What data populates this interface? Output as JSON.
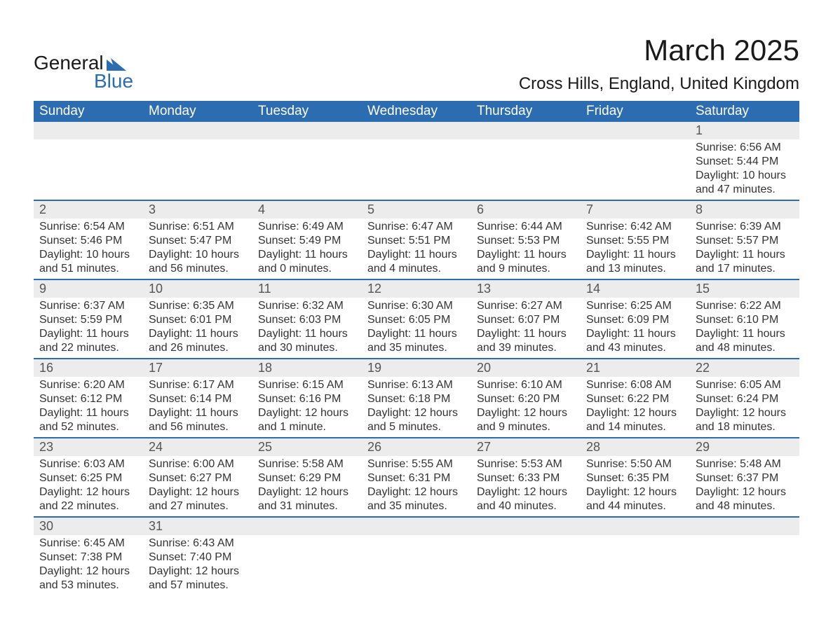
{
  "logo": {
    "text_top": "General",
    "text_bottom": "Blue",
    "mark_color": "#2c6cb0",
    "text_color_top": "#1a1a1a"
  },
  "title": "March 2025",
  "location": "Cross Hills, England, United Kingdom",
  "colors": {
    "header_bg": "#2c6cb0",
    "header_text": "#ffffff",
    "daynum_bg": "#ececec",
    "daynum_text": "#555555",
    "cell_text": "#333333",
    "row_border": "#2c6cb0",
    "page_bg": "#ffffff"
  },
  "typography": {
    "title_fontsize": 42,
    "location_fontsize": 24,
    "dayheader_fontsize": 19,
    "daynum_fontsize": 18,
    "cell_fontsize": 16,
    "font_family": "Arial"
  },
  "day_headers": [
    "Sunday",
    "Monday",
    "Tuesday",
    "Wednesday",
    "Thursday",
    "Friday",
    "Saturday"
  ],
  "weeks": [
    [
      null,
      null,
      null,
      null,
      null,
      null,
      {
        "n": "1",
        "sunrise": "Sunrise: 6:56 AM",
        "sunset": "Sunset: 5:44 PM",
        "day1": "Daylight: 10 hours",
        "day2": "and 47 minutes."
      }
    ],
    [
      {
        "n": "2",
        "sunrise": "Sunrise: 6:54 AM",
        "sunset": "Sunset: 5:46 PM",
        "day1": "Daylight: 10 hours",
        "day2": "and 51 minutes."
      },
      {
        "n": "3",
        "sunrise": "Sunrise: 6:51 AM",
        "sunset": "Sunset: 5:47 PM",
        "day1": "Daylight: 10 hours",
        "day2": "and 56 minutes."
      },
      {
        "n": "4",
        "sunrise": "Sunrise: 6:49 AM",
        "sunset": "Sunset: 5:49 PM",
        "day1": "Daylight: 11 hours",
        "day2": "and 0 minutes."
      },
      {
        "n": "5",
        "sunrise": "Sunrise: 6:47 AM",
        "sunset": "Sunset: 5:51 PM",
        "day1": "Daylight: 11 hours",
        "day2": "and 4 minutes."
      },
      {
        "n": "6",
        "sunrise": "Sunrise: 6:44 AM",
        "sunset": "Sunset: 5:53 PM",
        "day1": "Daylight: 11 hours",
        "day2": "and 9 minutes."
      },
      {
        "n": "7",
        "sunrise": "Sunrise: 6:42 AM",
        "sunset": "Sunset: 5:55 PM",
        "day1": "Daylight: 11 hours",
        "day2": "and 13 minutes."
      },
      {
        "n": "8",
        "sunrise": "Sunrise: 6:39 AM",
        "sunset": "Sunset: 5:57 PM",
        "day1": "Daylight: 11 hours",
        "day2": "and 17 minutes."
      }
    ],
    [
      {
        "n": "9",
        "sunrise": "Sunrise: 6:37 AM",
        "sunset": "Sunset: 5:59 PM",
        "day1": "Daylight: 11 hours",
        "day2": "and 22 minutes."
      },
      {
        "n": "10",
        "sunrise": "Sunrise: 6:35 AM",
        "sunset": "Sunset: 6:01 PM",
        "day1": "Daylight: 11 hours",
        "day2": "and 26 minutes."
      },
      {
        "n": "11",
        "sunrise": "Sunrise: 6:32 AM",
        "sunset": "Sunset: 6:03 PM",
        "day1": "Daylight: 11 hours",
        "day2": "and 30 minutes."
      },
      {
        "n": "12",
        "sunrise": "Sunrise: 6:30 AM",
        "sunset": "Sunset: 6:05 PM",
        "day1": "Daylight: 11 hours",
        "day2": "and 35 minutes."
      },
      {
        "n": "13",
        "sunrise": "Sunrise: 6:27 AM",
        "sunset": "Sunset: 6:07 PM",
        "day1": "Daylight: 11 hours",
        "day2": "and 39 minutes."
      },
      {
        "n": "14",
        "sunrise": "Sunrise: 6:25 AM",
        "sunset": "Sunset: 6:09 PM",
        "day1": "Daylight: 11 hours",
        "day2": "and 43 minutes."
      },
      {
        "n": "15",
        "sunrise": "Sunrise: 6:22 AM",
        "sunset": "Sunset: 6:10 PM",
        "day1": "Daylight: 11 hours",
        "day2": "and 48 minutes."
      }
    ],
    [
      {
        "n": "16",
        "sunrise": "Sunrise: 6:20 AM",
        "sunset": "Sunset: 6:12 PM",
        "day1": "Daylight: 11 hours",
        "day2": "and 52 minutes."
      },
      {
        "n": "17",
        "sunrise": "Sunrise: 6:17 AM",
        "sunset": "Sunset: 6:14 PM",
        "day1": "Daylight: 11 hours",
        "day2": "and 56 minutes."
      },
      {
        "n": "18",
        "sunrise": "Sunrise: 6:15 AM",
        "sunset": "Sunset: 6:16 PM",
        "day1": "Daylight: 12 hours",
        "day2": "and 1 minute."
      },
      {
        "n": "19",
        "sunrise": "Sunrise: 6:13 AM",
        "sunset": "Sunset: 6:18 PM",
        "day1": "Daylight: 12 hours",
        "day2": "and 5 minutes."
      },
      {
        "n": "20",
        "sunrise": "Sunrise: 6:10 AM",
        "sunset": "Sunset: 6:20 PM",
        "day1": "Daylight: 12 hours",
        "day2": "and 9 minutes."
      },
      {
        "n": "21",
        "sunrise": "Sunrise: 6:08 AM",
        "sunset": "Sunset: 6:22 PM",
        "day1": "Daylight: 12 hours",
        "day2": "and 14 minutes."
      },
      {
        "n": "22",
        "sunrise": "Sunrise: 6:05 AM",
        "sunset": "Sunset: 6:24 PM",
        "day1": "Daylight: 12 hours",
        "day2": "and 18 minutes."
      }
    ],
    [
      {
        "n": "23",
        "sunrise": "Sunrise: 6:03 AM",
        "sunset": "Sunset: 6:25 PM",
        "day1": "Daylight: 12 hours",
        "day2": "and 22 minutes."
      },
      {
        "n": "24",
        "sunrise": "Sunrise: 6:00 AM",
        "sunset": "Sunset: 6:27 PM",
        "day1": "Daylight: 12 hours",
        "day2": "and 27 minutes."
      },
      {
        "n": "25",
        "sunrise": "Sunrise: 5:58 AM",
        "sunset": "Sunset: 6:29 PM",
        "day1": "Daylight: 12 hours",
        "day2": "and 31 minutes."
      },
      {
        "n": "26",
        "sunrise": "Sunrise: 5:55 AM",
        "sunset": "Sunset: 6:31 PM",
        "day1": "Daylight: 12 hours",
        "day2": "and 35 minutes."
      },
      {
        "n": "27",
        "sunrise": "Sunrise: 5:53 AM",
        "sunset": "Sunset: 6:33 PM",
        "day1": "Daylight: 12 hours",
        "day2": "and 40 minutes."
      },
      {
        "n": "28",
        "sunrise": "Sunrise: 5:50 AM",
        "sunset": "Sunset: 6:35 PM",
        "day1": "Daylight: 12 hours",
        "day2": "and 44 minutes."
      },
      {
        "n": "29",
        "sunrise": "Sunrise: 5:48 AM",
        "sunset": "Sunset: 6:37 PM",
        "day1": "Daylight: 12 hours",
        "day2": "and 48 minutes."
      }
    ],
    [
      {
        "n": "30",
        "sunrise": "Sunrise: 6:45 AM",
        "sunset": "Sunset: 7:38 PM",
        "day1": "Daylight: 12 hours",
        "day2": "and 53 minutes."
      },
      {
        "n": "31",
        "sunrise": "Sunrise: 6:43 AM",
        "sunset": "Sunset: 7:40 PM",
        "day1": "Daylight: 12 hours",
        "day2": "and 57 minutes."
      },
      null,
      null,
      null,
      null,
      null
    ]
  ]
}
